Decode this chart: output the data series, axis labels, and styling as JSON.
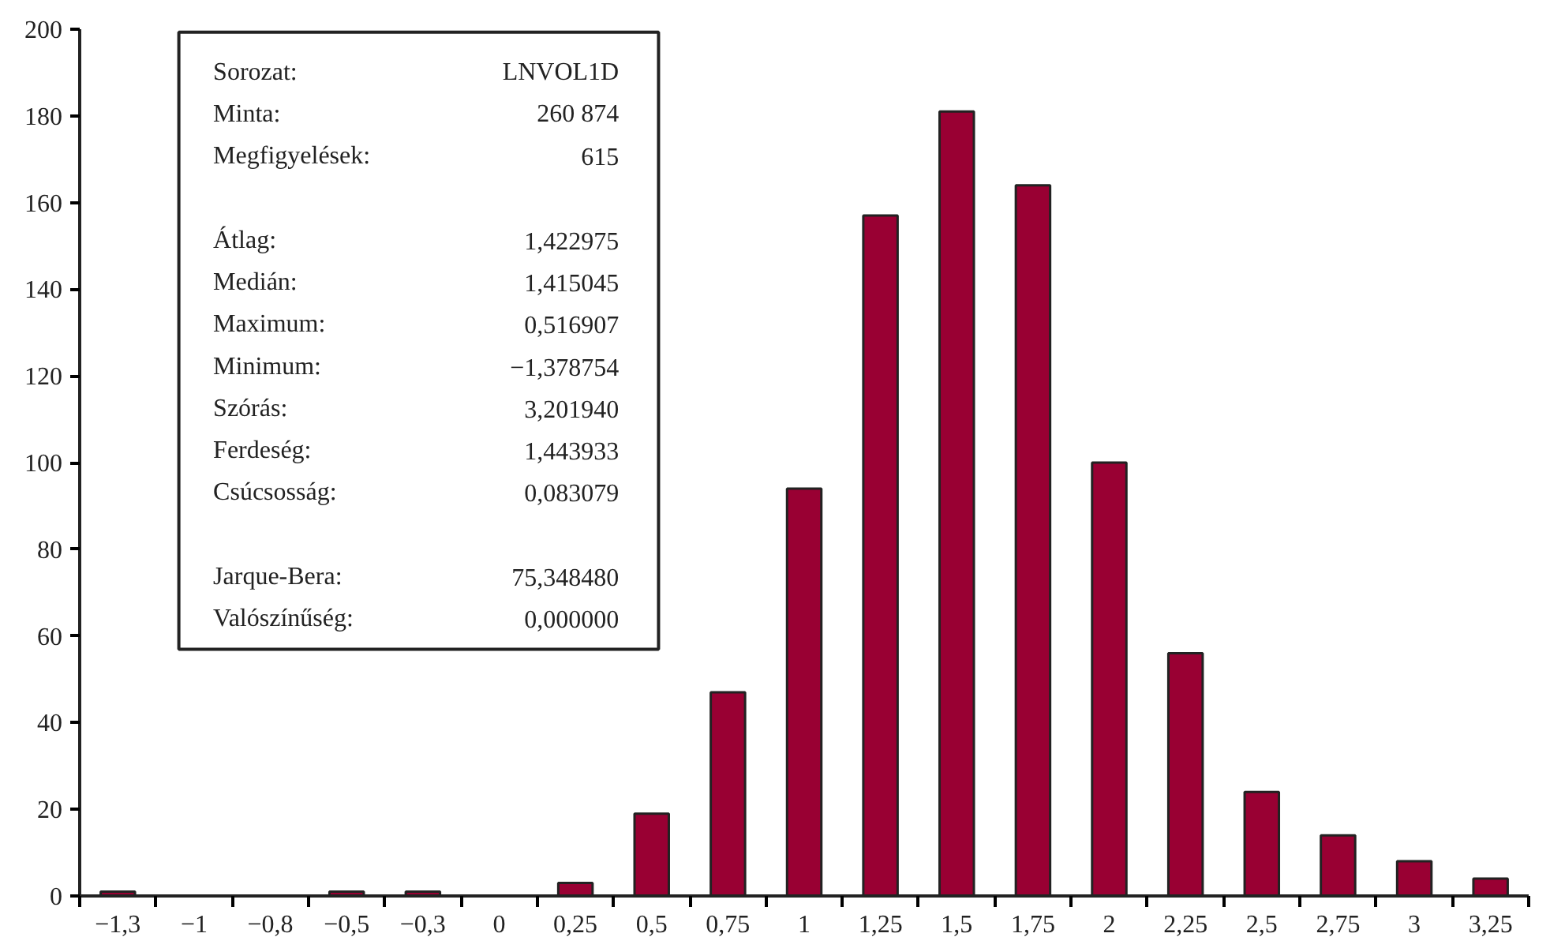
{
  "chart_data": {
    "type": "bar",
    "categories": [
      "−1,3",
      "−1",
      "−0,8",
      "−0,5",
      "−0,3",
      "0",
      "0,25",
      "0,5",
      "0,75",
      "1",
      "1,25",
      "1,5",
      "1,75",
      "2",
      "2,25",
      "2,5",
      "2,75",
      "3",
      "3,25"
    ],
    "values": [
      1,
      0,
      0,
      1,
      1,
      0,
      3,
      19,
      47,
      94,
      157,
      181,
      164,
      100,
      56,
      24,
      14,
      8,
      4
    ],
    "color": "#990033",
    "ylim": [
      0,
      200
    ],
    "yticks": [
      0,
      20,
      40,
      60,
      80,
      100,
      120,
      140,
      160,
      180,
      200
    ],
    "annotations": [
      "Sorozat:",
      "LNVOL1D",
      "Minta:",
      "260 874",
      "Megfigyelések:",
      "615",
      "Átlag:",
      "1,422975",
      "Medián:",
      "1,415045",
      "Maximum:",
      "0,516907",
      "Minimum:",
      "−1,378754",
      "Szórás:",
      "3,201940",
      "Ferdeség:",
      "1,443933",
      "Csúcsosság:",
      "0,083079",
      "Jarque-Bera:",
      "75,348480",
      "Valószínűség:",
      "0,000000"
    ]
  }
}
